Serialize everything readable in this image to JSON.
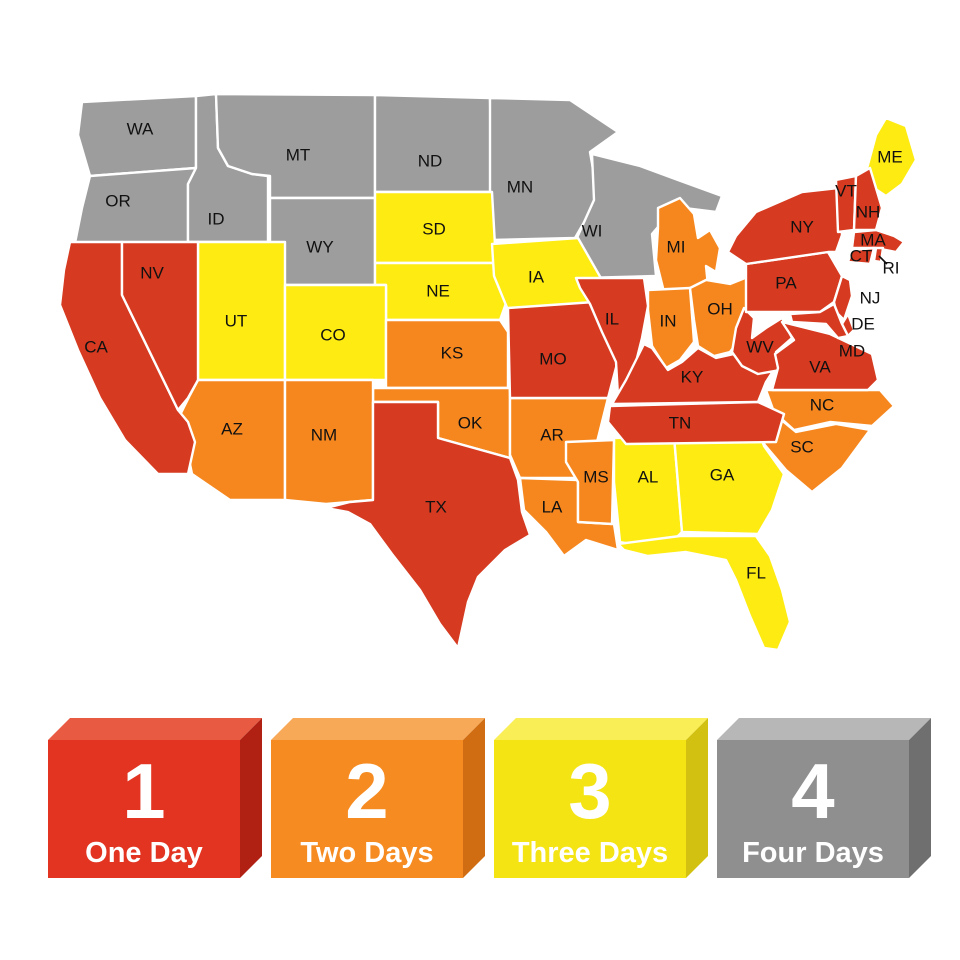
{
  "title": "US shipping days map",
  "day_colors": {
    "1": "#d63a20",
    "2": "#f6871f",
    "3": "#fdeb11",
    "4": "#9d9d9d"
  },
  "map": {
    "border_color": "#ffffff",
    "label_color": "#111111",
    "states": [
      {
        "code": "WA",
        "days": 4
      },
      {
        "code": "OR",
        "days": 4
      },
      {
        "code": "ID",
        "days": 4
      },
      {
        "code": "MT",
        "days": 4
      },
      {
        "code": "WY",
        "days": 4
      },
      {
        "code": "ND",
        "days": 4
      },
      {
        "code": "MN",
        "days": 4
      },
      {
        "code": "WI",
        "days": 4
      },
      {
        "code": "SD",
        "days": 3
      },
      {
        "code": "NE",
        "days": 3
      },
      {
        "code": "IA",
        "days": 3
      },
      {
        "code": "UT",
        "days": 3
      },
      {
        "code": "CO",
        "days": 3
      },
      {
        "code": "AL",
        "days": 3
      },
      {
        "code": "GA",
        "days": 3
      },
      {
        "code": "FL",
        "days": 3
      },
      {
        "code": "ME",
        "days": 3
      },
      {
        "code": "KS",
        "days": 2
      },
      {
        "code": "OK",
        "days": 2
      },
      {
        "code": "AR",
        "days": 2
      },
      {
        "code": "LA",
        "days": 2
      },
      {
        "code": "MS",
        "days": 2
      },
      {
        "code": "MI",
        "days": 2
      },
      {
        "code": "IN",
        "days": 2
      },
      {
        "code": "OH",
        "days": 2
      },
      {
        "code": "NC",
        "days": 2
      },
      {
        "code": "SC",
        "days": 2
      },
      {
        "code": "AZ",
        "days": 2
      },
      {
        "code": "NM",
        "days": 2
      },
      {
        "code": "CA",
        "days": 1
      },
      {
        "code": "NV",
        "days": 1
      },
      {
        "code": "TX",
        "days": 1
      },
      {
        "code": "MO",
        "days": 1
      },
      {
        "code": "IL",
        "days": 1
      },
      {
        "code": "KY",
        "days": 1
      },
      {
        "code": "TN",
        "days": 1
      },
      {
        "code": "WV",
        "days": 1
      },
      {
        "code": "VA",
        "days": 1
      },
      {
        "code": "PA",
        "days": 1
      },
      {
        "code": "NY",
        "days": 1
      },
      {
        "code": "VT",
        "days": 1
      },
      {
        "code": "NH",
        "days": 1
      },
      {
        "code": "MA",
        "days": 1
      },
      {
        "code": "CT",
        "days": 1
      },
      {
        "code": "RI",
        "days": 1
      },
      {
        "code": "NJ",
        "days": 1
      },
      {
        "code": "DE",
        "days": 1
      },
      {
        "code": "MD",
        "days": 1
      }
    ]
  },
  "legend": [
    {
      "number": "1",
      "label": "One Day",
      "front": "#e23421",
      "top": "#e85a41",
      "side": "#b02114"
    },
    {
      "number": "2",
      "label": "Two Days",
      "front": "#f68b21",
      "top": "#f8a958",
      "side": "#d06d12"
    },
    {
      "number": "3",
      "label": "Three Days",
      "front": "#f4e414",
      "top": "#f9ee55",
      "side": "#d3c111"
    },
    {
      "number": "4",
      "label": "Four Days",
      "front": "#8f8f8f",
      "top": "#b7b7b7",
      "side": "#6f6f6f"
    }
  ]
}
